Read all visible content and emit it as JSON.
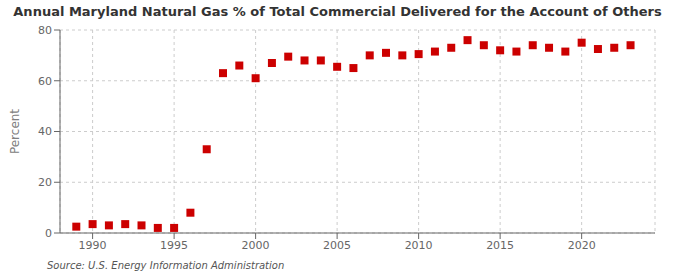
{
  "chart_data": {
    "type": "scatter",
    "title": "Annual Maryland Natural Gas % of Total Commercial Delivered for the Account of Others",
    "ylabel": "Percent",
    "annotations": [
      "Source: U.S. Energy Information Administration"
    ],
    "x": [
      1989,
      1990,
      1991,
      1992,
      1993,
      1994,
      1995,
      1996,
      1997,
      1998,
      1999,
      2000,
      2001,
      2002,
      2003,
      2004,
      2005,
      2006,
      2007,
      2008,
      2009,
      2010,
      2011,
      2012,
      2013,
      2014,
      2015,
      2016,
      2017,
      2018,
      2019,
      2020,
      2021,
      2022,
      2023
    ],
    "values": [
      2.5,
      3.5,
      3.0,
      3.5,
      3.0,
      2.0,
      2.0,
      8.0,
      33.0,
      63.0,
      66.0,
      61.0,
      67.0,
      69.5,
      68.0,
      68.0,
      65.5,
      65.0,
      70.0,
      71.0,
      70.0,
      70.5,
      71.5,
      73.0,
      76.0,
      74.0,
      72.0,
      71.5,
      74.0,
      73.0,
      71.5,
      75.0,
      72.5,
      73.0,
      74.0
    ],
    "color": "#cc0000",
    "marker": "square",
    "xlim": [
      1988.0,
      2024.5
    ],
    "ylim": [
      0,
      80
    ],
    "xticks": [
      1990,
      1995,
      2000,
      2005,
      2010,
      2015,
      2020
    ],
    "yticks": [
      0,
      20,
      40,
      60,
      80
    ],
    "grid": true
  }
}
